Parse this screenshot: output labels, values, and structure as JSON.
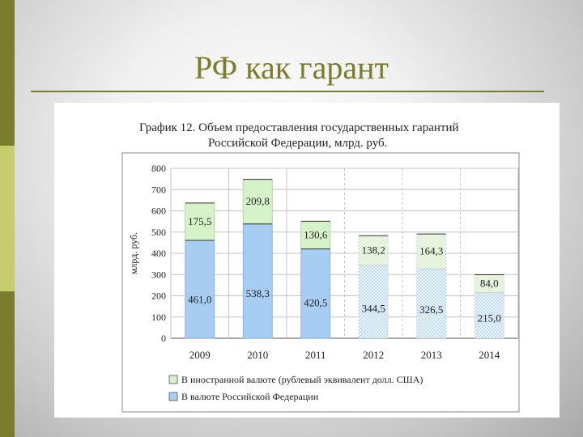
{
  "slide": {
    "title": "РФ как гарант",
    "accent": "#7b7d2a",
    "side_colors": [
      "#7a7d2e",
      "#c7cc6c",
      "#7a7d2e"
    ]
  },
  "chart_data": {
    "type": "bar",
    "stacked": true,
    "title": "График 12. Объем предоставления государственных гарантий Российской Федерации, млрд. руб.",
    "title_lines": [
      "График 12. Объем предоставления государственных гарантий",
      "Российской Федерации, млрд. руб."
    ],
    "ylabel": "млрд. руб.",
    "ylim": [
      0,
      800
    ],
    "yticks": [
      0,
      100,
      200,
      300,
      400,
      500,
      600,
      700,
      800
    ],
    "categories": [
      "2009",
      "2010",
      "2011",
      "2012",
      "2013",
      "2014"
    ],
    "forecast_from_index": 3,
    "series": [
      {
        "name": "В валюте Российской Федерации",
        "values": [
          461.0,
          538.3,
          420.5,
          344.5,
          326.5,
          215.0
        ],
        "labels": [
          "461,0",
          "538,3",
          "420,5",
          "344,5",
          "326,5",
          "215,0"
        ],
        "color": "#a8cdf2"
      },
      {
        "name": "В иностранной валюте (рублевый эквивалент долл. США)",
        "values": [
          175.5,
          209.8,
          130.6,
          138.2,
          164.3,
          84.0
        ],
        "labels": [
          "175,5",
          "209,8",
          "130,6",
          "138,2",
          "164,3",
          "84,0"
        ],
        "color": "#d6f2c9"
      }
    ],
    "legend_order": [
      1,
      0
    ],
    "legend_position": "bottom",
    "grid": true
  }
}
